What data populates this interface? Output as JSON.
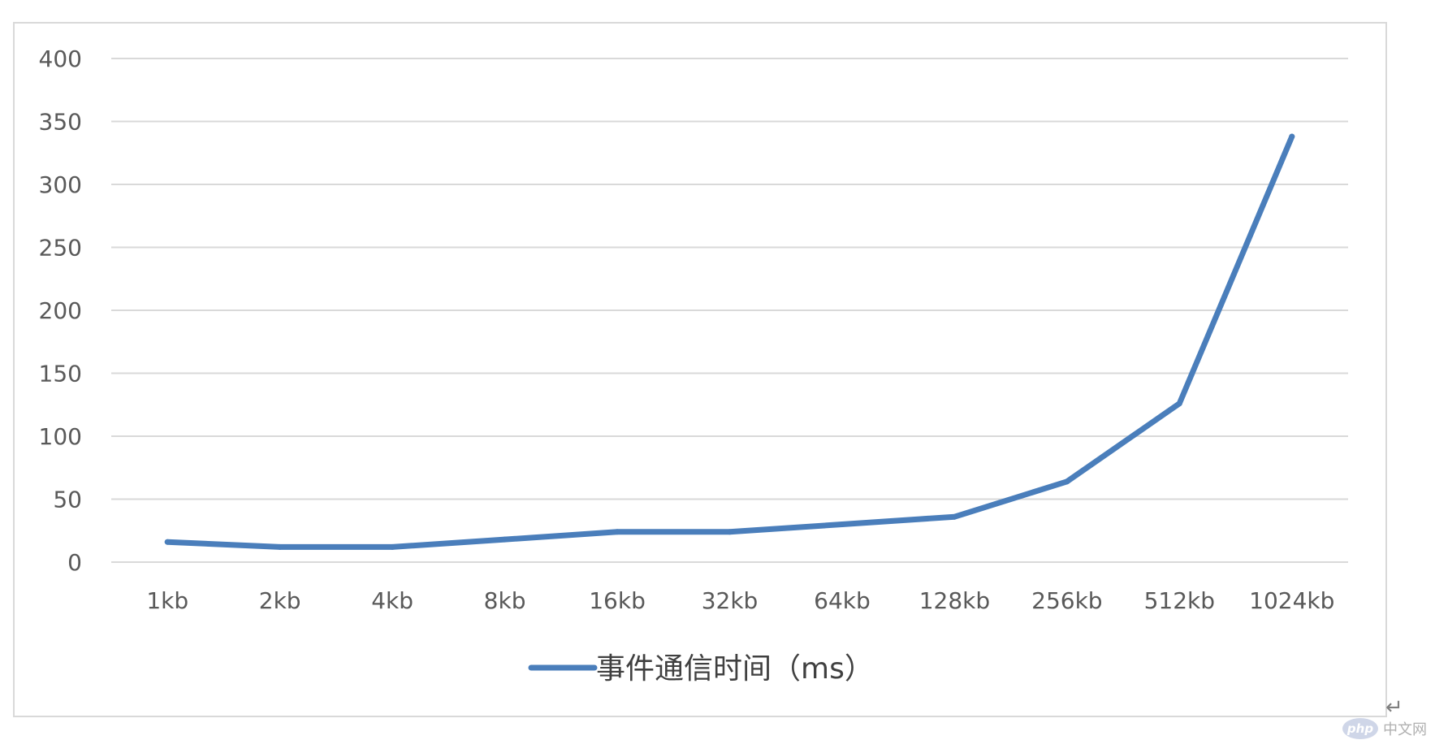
{
  "chart_data": {
    "type": "line",
    "categories": [
      "1kb",
      "2kb",
      "4kb",
      "8kb",
      "16kb",
      "32kb",
      "64kb",
      "128kb",
      "256kb",
      "512kb",
      "1024kb"
    ],
    "series": [
      {
        "name": "事件通信时间（ms）",
        "values": [
          16,
          12,
          12,
          18,
          24,
          24,
          30,
          36,
          64,
          126,
          338
        ],
        "color": "#4a7ebb"
      }
    ],
    "y_ticks": [
      0,
      50,
      100,
      150,
      200,
      250,
      300,
      350,
      400
    ],
    "ylim": [
      0,
      400
    ],
    "grid": "horizontal",
    "legend_position": "bottom",
    "gridline_color": "#d9d9d9",
    "axis_label_color": "#595959"
  },
  "page": {
    "return_mark": "↵",
    "watermark_logo": "php",
    "watermark_text": "中文网"
  }
}
